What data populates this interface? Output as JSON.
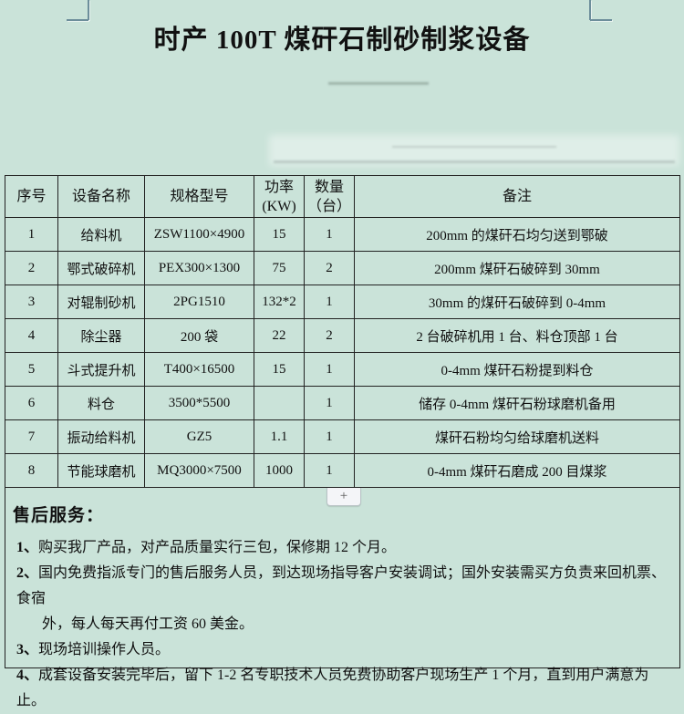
{
  "colors": {
    "page_background": "#cae3d9",
    "table_border": "#222222",
    "crop_mark": "#6d8e9b",
    "text": "#111111"
  },
  "page": {
    "title": "时产 100T 煤矸石制砂制浆设备"
  },
  "table": {
    "columns": [
      {
        "label": "序号"
      },
      {
        "label": "设备名称"
      },
      {
        "label": "规格型号"
      },
      {
        "label": "功率",
        "sub": "(KW)"
      },
      {
        "label": "数量",
        "sub": "（台）"
      },
      {
        "label": "备注"
      }
    ],
    "rows": [
      {
        "no": "1",
        "name": "给料机",
        "model": "ZSW1100×4900",
        "power": "15",
        "qty": "1",
        "note": "200mm 的煤矸石均匀送到鄂破"
      },
      {
        "no": "2",
        "name": "鄂式破碎机",
        "model": "PEX300×1300",
        "power": "75",
        "qty": "2",
        "note": "200mm 煤矸石破碎到 30mm"
      },
      {
        "no": "3",
        "name": "对辊制砂机",
        "model": "2PG1510",
        "power": "132*2",
        "qty": "1",
        "note": "30mm 的煤矸石破碎到 0-4mm"
      },
      {
        "no": "4",
        "name": "除尘器",
        "model": "200 袋",
        "power": "22",
        "qty": "2",
        "note": "2 台破碎机用 1 台、料仓顶部 1 台"
      },
      {
        "no": "5",
        "name": "斗式提升机",
        "model": "T400×16500",
        "power": "15",
        "qty": "1",
        "note": "0-4mm 煤矸石粉提到料仓"
      },
      {
        "no": "6",
        "name": "料仓",
        "model": "3500*5500",
        "power": "",
        "qty": "1",
        "note": "储存 0-4mm 煤矸石粉球磨机备用"
      },
      {
        "no": "7",
        "name": "振动给料机",
        "model": "GZ5",
        "power": "1.1",
        "qty": "1",
        "note": "煤矸石粉均匀给球磨机送料"
      },
      {
        "no": "8",
        "name": "节能球磨机",
        "model": "MQ3000×7500",
        "power": "1000",
        "qty": "1",
        "note": "0-4mm 煤矸石磨成 200 目煤浆"
      }
    ]
  },
  "insert_control": {
    "label": "+"
  },
  "after_sales": {
    "heading": "售后服务：",
    "items": [
      {
        "num": "1、",
        "lines": [
          "购买我厂产品，对产品质量实行三包，保修期 12 个月。"
        ]
      },
      {
        "num": "2、",
        "lines": [
          "国内免费指派专门的售后服务人员，到达现场指导客户安装调试；国外安装需买方负责来回机票、食宿",
          "外，每人每天再付工资 60 美金。"
        ]
      },
      {
        "num": "3、",
        "lines": [
          "现场培训操作人员。"
        ]
      },
      {
        "num": "4、",
        "lines": [
          "成套设备安装完毕后，留下 1-2 名专职技术人员免费协助客户现场生产 1 个月，直到用户满意为止。"
        ]
      }
    ]
  }
}
